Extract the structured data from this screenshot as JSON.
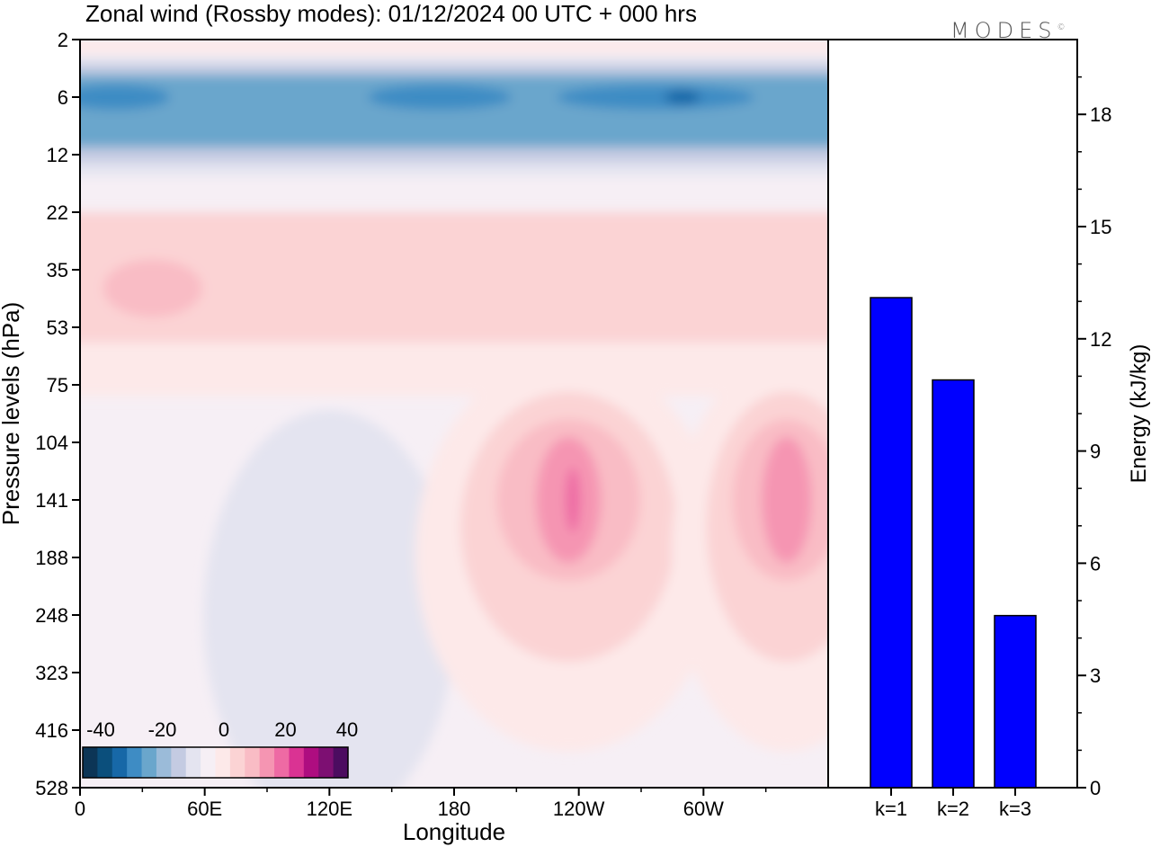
{
  "title": "Zonal wind (Rossby modes):  01/12/2024  00 UTC  + 000 hrs",
  "logo": "MODES",
  "logo_mark": "©",
  "colors": {
    "bar": "#0000ff",
    "scale": [
      "#0c3556",
      "#0b4f7c",
      "#1768a7",
      "#3e8cc4",
      "#6aa6cc",
      "#9bbbd9",
      "#c4cbe2",
      "#e4e4f0",
      "#f6eff5",
      "#fde9e9",
      "#fbd3d4",
      "#f9bcc5",
      "#f595b2",
      "#ee6aa4",
      "#da3393",
      "#ae0d80",
      "#7d0f72",
      "#4c0c60"
    ]
  },
  "chart_data": [
    {
      "type": "heatmap",
      "title": "Zonal wind (Rossby modes):  01/12/2024  00 UTC  + 000 hrs",
      "xlabel": "Longitude",
      "ylabel": "Pressure levels (hPa)",
      "x_ticks": [
        "0",
        "60E",
        "120E",
        "180",
        "120W",
        "60W"
      ],
      "y_ticks": [
        "2",
        "6",
        "12",
        "22",
        "35",
        "53",
        "75",
        "104",
        "141",
        "188",
        "248",
        "323",
        "416",
        "528"
      ],
      "colorbar": {
        "ticks": [
          "-40",
          "-20",
          "0",
          "20",
          "40"
        ],
        "range": [
          -40,
          40
        ]
      },
      "fields": {
        "stratosphere_easterly_band": {
          "levels_hPa": [
            4,
            12
          ],
          "min_value": -35
        },
        "positive_jet_cores": [
          {
            "longitude": "125W",
            "level_hPa": 141,
            "value": 25
          },
          {
            "longitude": "20W",
            "level_hPa": 141,
            "value": 18
          },
          {
            "longitude": "35E",
            "level_hPa": 40,
            "value": 10
          }
        ],
        "negative_trough": {
          "longitude": "120E",
          "level_hPa": 141,
          "value": -8
        }
      }
    },
    {
      "type": "bar",
      "categories": [
        "k=1",
        "k=2",
        "k=3"
      ],
      "values": [
        13.1,
        10.9,
        4.6
      ],
      "ylabel": "Energy (kJ/kg)",
      "y_ticks": [
        "0",
        "3",
        "6",
        "9",
        "12",
        "15",
        "18"
      ],
      "ylim": [
        0,
        20
      ]
    }
  ]
}
